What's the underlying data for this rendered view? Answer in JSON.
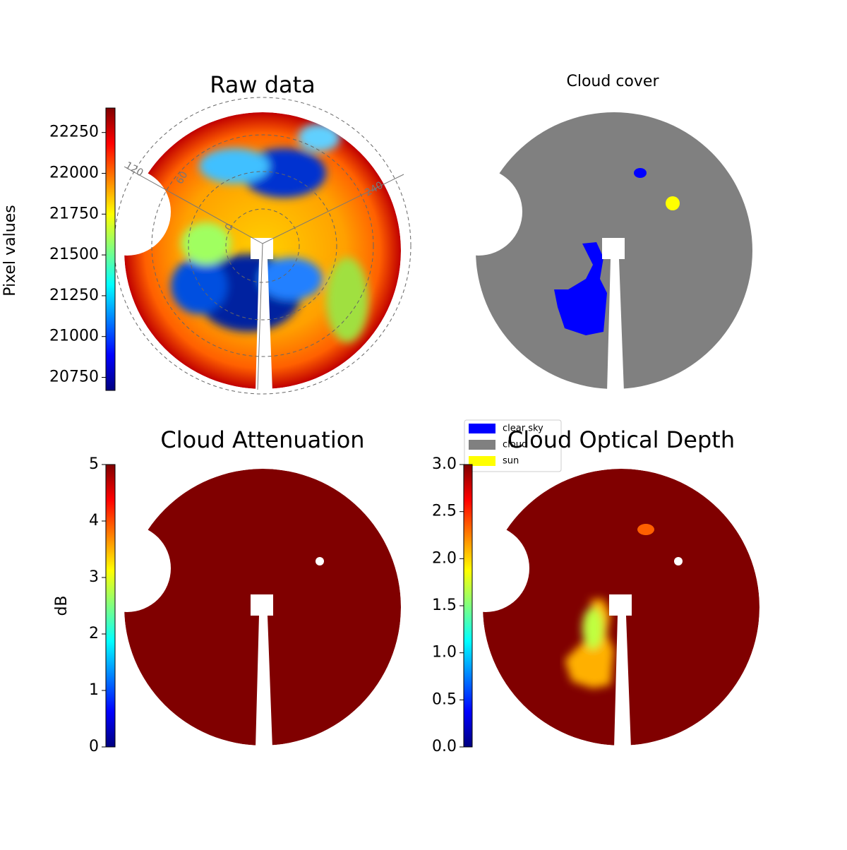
{
  "chart_data": [
    {
      "type": "image",
      "title": "Raw data",
      "colormap": "jet",
      "colorbar": {
        "label": "Pixel values",
        "lim": [
          20670,
          22400
        ],
        "ticks": [
          20750,
          21000,
          21250,
          21500,
          21750,
          22000,
          22250
        ]
      },
      "polar_labels": [
        120,
        60,
        0,
        240
      ]
    },
    {
      "type": "image",
      "title": "Cloud cover",
      "legend": [
        {
          "name": "clear sky",
          "color": "#0000ff"
        },
        {
          "name": "cloud",
          "color": "#808080"
        },
        {
          "name": "sun",
          "color": "#ffff00"
        }
      ]
    },
    {
      "type": "image",
      "title": "Cloud Attenuation",
      "colormap": "jet",
      "colorbar": {
        "label": "dB",
        "lim": [
          0,
          5
        ],
        "ticks": [
          0,
          1,
          2,
          3,
          4,
          5
        ]
      }
    },
    {
      "type": "image",
      "title": "Cloud Optical Depth",
      "colormap": "jet",
      "colorbar": {
        "lim": [
          0,
          3
        ],
        "ticks": [
          {
            "value": 0,
            "label": "0.0"
          },
          {
            "value": 0.5,
            "label": "0.5"
          },
          {
            "value": 1,
            "label": "1.0"
          },
          {
            "value": 1.5,
            "label": "1.5"
          },
          {
            "value": 2,
            "label": "2.0"
          },
          {
            "value": 2.5,
            "label": "2.5"
          },
          {
            "value": 3,
            "label": "3.0"
          }
        ]
      }
    }
  ]
}
